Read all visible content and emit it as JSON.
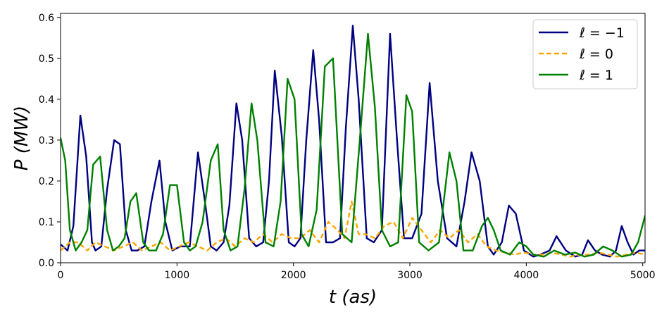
{
  "chart_data": {
    "type": "line",
    "xlabel": "t (as)",
    "ylabel": "P (MW)",
    "xlim": [
      0,
      5020
    ],
    "ylim": [
      0,
      0.61
    ],
    "xticks": [
      0,
      1000,
      2000,
      3000,
      4000,
      5000
    ],
    "yticks": [
      0.0,
      0.1,
      0.2,
      0.3,
      0.4,
      0.5,
      0.6
    ],
    "xtick_labels": [
      "0",
      "1000",
      "2000",
      "3000",
      "4000",
      "5000"
    ],
    "ytick_labels": [
      "0.0",
      "0.1",
      "0.2",
      "0.3",
      "0.4",
      "0.5",
      "0.6"
    ],
    "grid": false,
    "legend": "top-right",
    "series": [
      {
        "name": "ℓ = −1",
        "color": "#000080",
        "style": "solid",
        "x": [
          0,
          60,
          110,
          170,
          220,
          270,
          300,
          350,
          400,
          460,
          510,
          560,
          610,
          660,
          720,
          780,
          850,
          900,
          960,
          1030,
          1110,
          1180,
          1240,
          1290,
          1340,
          1400,
          1450,
          1510,
          1560,
          1620,
          1680,
          1740,
          1790,
          1840,
          1900,
          1960,
          2010,
          2060,
          2110,
          2170,
          2220,
          2280,
          2340,
          2400,
          2450,
          2510,
          2560,
          2630,
          2690,
          2760,
          2830,
          2890,
          2950,
          3020,
          3100,
          3170,
          3240,
          3320,
          3400,
          3470,
          3530,
          3600,
          3670,
          3720,
          3790,
          3850,
          3910,
          3980,
          4060,
          4120,
          4200,
          4260,
          4340,
          4420,
          4480,
          4530,
          4590,
          4650,
          4720,
          4770,
          4820,
          4870,
          4920,
          4970,
          5020
        ],
        "y": [
          0.045,
          0.03,
          0.09,
          0.36,
          0.26,
          0.05,
          0.03,
          0.04,
          0.18,
          0.3,
          0.29,
          0.08,
          0.03,
          0.03,
          0.04,
          0.15,
          0.25,
          0.1,
          0.03,
          0.04,
          0.04,
          0.27,
          0.15,
          0.04,
          0.03,
          0.05,
          0.14,
          0.39,
          0.3,
          0.06,
          0.04,
          0.05,
          0.2,
          0.47,
          0.31,
          0.05,
          0.04,
          0.06,
          0.3,
          0.52,
          0.35,
          0.05,
          0.05,
          0.06,
          0.33,
          0.58,
          0.4,
          0.06,
          0.05,
          0.08,
          0.56,
          0.3,
          0.06,
          0.06,
          0.12,
          0.44,
          0.2,
          0.06,
          0.04,
          0.15,
          0.27,
          0.2,
          0.04,
          0.02,
          0.05,
          0.14,
          0.12,
          0.03,
          0.015,
          0.02,
          0.03,
          0.065,
          0.03,
          0.015,
          0.02,
          0.055,
          0.03,
          0.02,
          0.015,
          0.03,
          0.09,
          0.05,
          0.02,
          0.03,
          0.03
        ]
      },
      {
        "name": "ℓ = 0",
        "color": "#FFA500",
        "style": "dashed",
        "x": [
          0,
          80,
          150,
          230,
          300,
          380,
          460,
          540,
          620,
          700,
          780,
          860,
          940,
          1020,
          1100,
          1180,
          1260,
          1340,
          1420,
          1500,
          1580,
          1660,
          1740,
          1820,
          1900,
          1980,
          2060,
          2140,
          2220,
          2300,
          2380,
          2440,
          2500,
          2560,
          2620,
          2700,
          2780,
          2860,
          2940,
          3020,
          3100,
          3180,
          3260,
          3340,
          3420,
          3500,
          3580,
          3660,
          3740,
          3820,
          3900,
          3980,
          4060,
          4140,
          4220,
          4300,
          4380,
          4460,
          4540,
          4620,
          4700,
          4780,
          4860,
          4940,
          5020
        ],
        "y": [
          0.03,
          0.05,
          0.05,
          0.03,
          0.05,
          0.04,
          0.03,
          0.04,
          0.05,
          0.03,
          0.04,
          0.05,
          0.03,
          0.04,
          0.05,
          0.04,
          0.03,
          0.05,
          0.06,
          0.04,
          0.06,
          0.05,
          0.07,
          0.05,
          0.07,
          0.06,
          0.06,
          0.08,
          0.05,
          0.1,
          0.08,
          0.06,
          0.15,
          0.07,
          0.07,
          0.06,
          0.09,
          0.1,
          0.06,
          0.11,
          0.08,
          0.05,
          0.08,
          0.06,
          0.08,
          0.05,
          0.07,
          0.04,
          0.03,
          0.025,
          0.02,
          0.025,
          0.02,
          0.02,
          0.025,
          0.02,
          0.015,
          0.02,
          0.02,
          0.025,
          0.02,
          0.015,
          0.02,
          0.025,
          0.02
        ]
      },
      {
        "name": "ℓ = 1",
        "color": "#008000",
        "style": "solid",
        "x": [
          0,
          40,
          80,
          130,
          180,
          230,
          280,
          340,
          400,
          450,
          500,
          550,
          600,
          650,
          710,
          760,
          820,
          880,
          940,
          1000,
          1060,
          1110,
          1160,
          1220,
          1290,
          1350,
          1400,
          1460,
          1520,
          1580,
          1640,
          1690,
          1760,
          1830,
          1890,
          1950,
          2010,
          2070,
          2130,
          2200,
          2270,
          2340,
          2420,
          2500,
          2570,
          2640,
          2700,
          2760,
          2830,
          2900,
          2970,
          3020,
          3080,
          3160,
          3250,
          3340,
          3400,
          3460,
          3540,
          3620,
          3670,
          3720,
          3780,
          3860,
          3940,
          4000,
          4060,
          4150,
          4240,
          4330,
          4420,
          4500,
          4580,
          4660,
          4740,
          4820,
          4900,
          4960,
          5020
        ],
        "y": [
          0.305,
          0.25,
          0.08,
          0.03,
          0.05,
          0.08,
          0.24,
          0.26,
          0.08,
          0.03,
          0.04,
          0.06,
          0.15,
          0.17,
          0.05,
          0.03,
          0.03,
          0.07,
          0.19,
          0.19,
          0.05,
          0.03,
          0.04,
          0.1,
          0.25,
          0.29,
          0.08,
          0.03,
          0.04,
          0.18,
          0.39,
          0.3,
          0.05,
          0.04,
          0.15,
          0.45,
          0.4,
          0.07,
          0.04,
          0.13,
          0.48,
          0.5,
          0.07,
          0.05,
          0.3,
          0.56,
          0.38,
          0.08,
          0.04,
          0.05,
          0.41,
          0.37,
          0.05,
          0.03,
          0.05,
          0.27,
          0.2,
          0.03,
          0.03,
          0.09,
          0.11,
          0.08,
          0.03,
          0.02,
          0.05,
          0.04,
          0.02,
          0.015,
          0.03,
          0.02,
          0.025,
          0.015,
          0.02,
          0.04,
          0.03,
          0.015,
          0.02,
          0.05,
          0.115
        ]
      }
    ]
  }
}
